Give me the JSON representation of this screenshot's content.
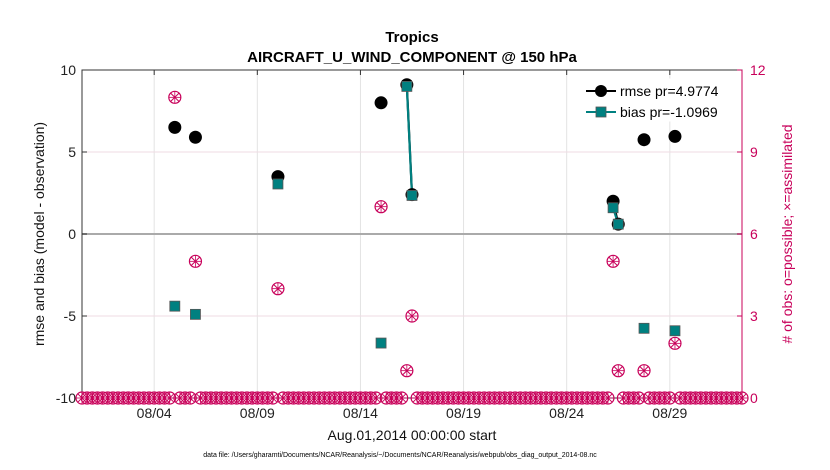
{
  "chart_data": {
    "type": "scatter",
    "title": "Tropics",
    "subtitle": "AIRCRAFT_U_WIND_COMPONENT @ 150 hPa",
    "xlabel": "Aug.01,2014 00:00:00 start",
    "ylabel": "rmse and bias (model - observation)",
    "ylabel_right": "# of obs: o=possible; ×=assimilated",
    "xlim": [
      0,
      32
    ],
    "ylim": [
      -10,
      10
    ],
    "ylim_right": [
      0,
      12
    ],
    "x_ticks": [
      3.5,
      8.5,
      13.5,
      18.5,
      23.5,
      28.5
    ],
    "x_tick_labels": [
      "08/04",
      "08/09",
      "08/14",
      "08/19",
      "08/24",
      "08/29"
    ],
    "y_ticks": [
      -10,
      -5,
      0,
      5,
      10
    ],
    "y_tick_labels": [
      "-10",
      "-5",
      "0",
      "5",
      "10"
    ],
    "y_right_ticks": [
      0,
      3,
      6,
      9,
      12
    ],
    "y_right_tick_labels": [
      "0",
      "3",
      "6",
      "9",
      "12"
    ],
    "grid": true,
    "legend_position": "top-right",
    "series": [
      {
        "name": "rmse pr=4.9774",
        "color": "#000000",
        "points": [
          [
            4.5,
            6.5
          ],
          [
            5.5,
            5.9
          ],
          [
            9.5,
            3.5
          ],
          [
            14.5,
            8.0
          ],
          [
            15.75,
            9.1
          ],
          [
            16,
            2.4
          ],
          [
            25.75,
            2.0
          ],
          [
            26,
            0.6
          ],
          [
            27.25,
            5.75
          ],
          [
            28.75,
            5.95
          ]
        ],
        "segments": [
          [
            [
              15.75,
              9.1
            ],
            [
              16,
              2.4
            ]
          ],
          [
            [
              25.75,
              2.0
            ],
            [
              26,
              0.6
            ]
          ]
        ]
      },
      {
        "name": "bias pr=-1.0969",
        "color": "#008080",
        "points": [
          [
            4.5,
            -4.4
          ],
          [
            5.5,
            -4.9
          ],
          [
            9.5,
            3.05
          ],
          [
            14.5,
            -6.65
          ],
          [
            15.75,
            9.0
          ],
          [
            16,
            2.35
          ],
          [
            25.75,
            1.6
          ],
          [
            26,
            0.6
          ],
          [
            27.25,
            -5.75
          ],
          [
            28.75,
            -5.9
          ]
        ],
        "segments": [
          [
            [
              15.75,
              9.0
            ],
            [
              16,
              2.35
            ]
          ],
          [
            [
              25.75,
              1.6
            ],
            [
              26,
              0.6
            ]
          ]
        ]
      },
      {
        "name": "obs possible / assimilated",
        "color": "#c8005a",
        "axis": "right",
        "points": [
          [
            4.5,
            11
          ],
          [
            5.5,
            5
          ],
          [
            9.5,
            4
          ],
          [
            14.5,
            7
          ],
          [
            15.75,
            1
          ],
          [
            16,
            3
          ],
          [
            25.75,
            5
          ],
          [
            26,
            1
          ],
          [
            27.25,
            1
          ],
          [
            28.75,
            2
          ]
        ]
      }
    ],
    "zero_count_days": [
      0,
      0.25,
      0.5,
      0.75,
      1,
      1.25,
      1.5,
      1.75,
      2,
      2.25,
      2.5,
      2.75,
      3,
      3.25,
      3.5,
      3.75,
      4,
      4.25,
      4.75,
      5,
      5.25,
      5.75,
      6,
      6.25,
      6.5,
      6.75,
      7,
      7.25,
      7.5,
      7.75,
      8,
      8.25,
      8.5,
      8.75,
      9,
      9.25,
      9.75,
      10,
      10.25,
      10.5,
      10.75,
      11,
      11.25,
      11.5,
      11.75,
      12,
      12.25,
      12.5,
      12.75,
      13,
      13.25,
      13.5,
      13.75,
      14,
      14.25,
      14.75,
      15,
      15.25,
      15.5,
      16.25,
      16.5,
      16.75,
      17,
      17.25,
      17.5,
      17.75,
      18,
      18.25,
      18.5,
      18.75,
      19,
      19.25,
      19.5,
      19.75,
      20,
      20.25,
      20.5,
      20.75,
      21,
      21.25,
      21.5,
      21.75,
      22,
      22.25,
      22.5,
      22.75,
      23,
      23.25,
      23.5,
      23.75,
      24,
      24.25,
      24.5,
      24.75,
      25,
      25.25,
      25.5,
      26.25,
      26.5,
      26.75,
      27,
      27.5,
      27.75,
      28,
      28.25,
      28.5,
      29,
      29.25,
      29.5,
      29.75,
      30,
      30.25,
      30.5,
      30.75,
      31,
      31.25,
      31.5,
      31.75,
      32
    ],
    "colors": {
      "rmse": "#000000",
      "bias": "#008080",
      "obs": "#c8005a",
      "zero_line": "#aaaaaa",
      "grid": "#e3e3e3"
    }
  },
  "footer": "data file: /Users/gharamti/Documents/NCAR/Reanalysis/~/Documents/NCAR/Reanalysis/webpub/obs_diag_output_2014-08.nc"
}
